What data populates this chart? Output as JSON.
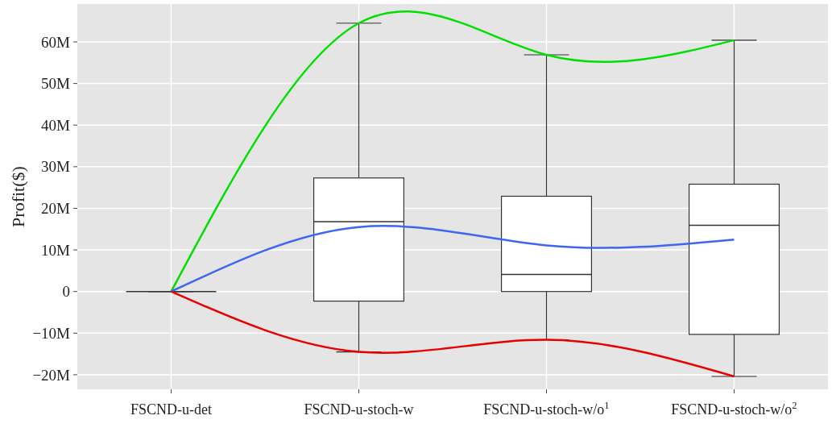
{
  "chart_data": {
    "type": "box",
    "ylabel": "Profit($)",
    "categories": [
      "FSCND-u-det",
      "FSCND-u-stoch-w",
      "FSCND-u-stoch-w/o$^{1}$",
      "FSCND-u-stoch-w/o$^{2}$"
    ],
    "boxes": [
      {
        "low": 0,
        "q1": 0,
        "median": 0,
        "q3": 0,
        "high": 0
      },
      {
        "low": -14.5,
        "q1": -2.3,
        "median": 16.8,
        "q3": 27.3,
        "high": 64.5
      },
      {
        "low": -11.6,
        "q1": 0,
        "median": 4.1,
        "q3": 22.9,
        "high": 56.9
      },
      {
        "low": -20.4,
        "q1": -10.3,
        "median": 15.9,
        "q3": 25.8,
        "high": 60.4
      }
    ],
    "series": [
      {
        "type": "line",
        "color": "#00e000",
        "values": [
          0,
          64.5,
          56.9,
          60.4
        ]
      },
      {
        "type": "line",
        "color": "#3f66f0",
        "values": [
          0,
          15.5,
          11.1,
          12.5
        ]
      },
      {
        "type": "line",
        "color": "#e80000",
        "values": [
          0,
          -14.5,
          -11.6,
          -20.4
        ]
      }
    ],
    "ylim": [
      -23.5,
      69.1
    ],
    "yticks": [
      {
        "value": -20,
        "label": "−20M"
      },
      {
        "value": -10,
        "label": "−10M"
      },
      {
        "value": 0,
        "label": "0"
      },
      {
        "value": 10,
        "label": "10M"
      },
      {
        "value": 20,
        "label": "20M"
      },
      {
        "value": 30,
        "label": "30M"
      },
      {
        "value": 40,
        "label": "40M"
      },
      {
        "value": 50,
        "label": "50M"
      },
      {
        "value": 60,
        "label": "60M"
      }
    ],
    "colors": [
      "#333333",
      "#ffffff",
      "#ffffff",
      "#ffffff"
    ],
    "grid": true
  }
}
